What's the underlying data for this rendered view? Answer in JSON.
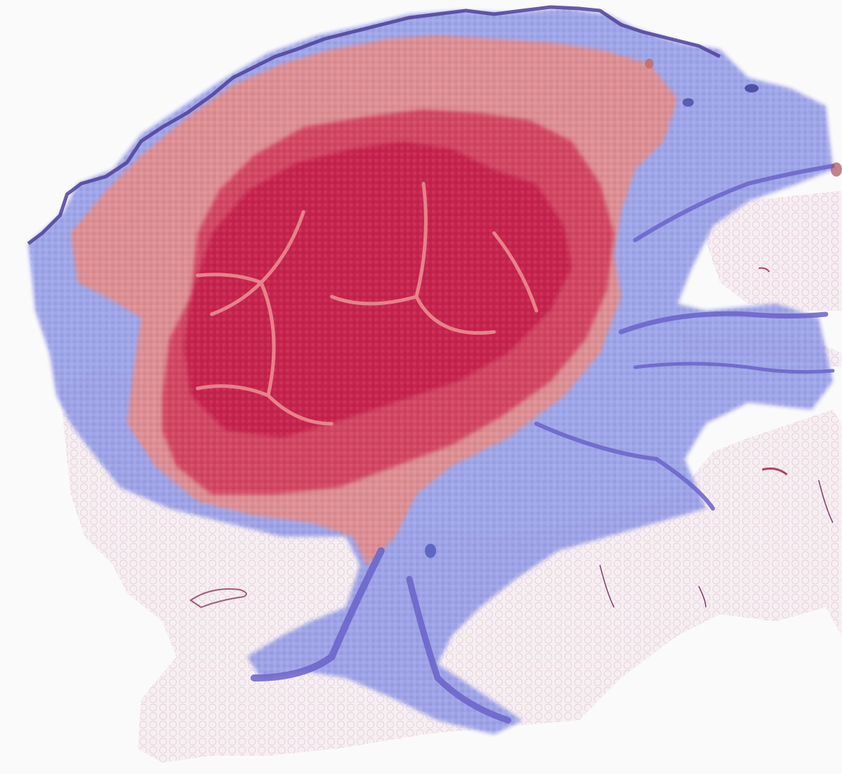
{
  "image": {
    "kind": "whole-slide histology tissue section with attention heatmap overlay",
    "stain": "H&E",
    "overlay": {
      "type": "patch heatmap",
      "high_color": "#c41e4a",
      "mid_high_color": "#ee8a7e",
      "low_color": "#8f97e8",
      "lowest_color": "#6a63c9",
      "tissue_color": "#f3e9ee",
      "background_color": "#fbfafb"
    }
  }
}
